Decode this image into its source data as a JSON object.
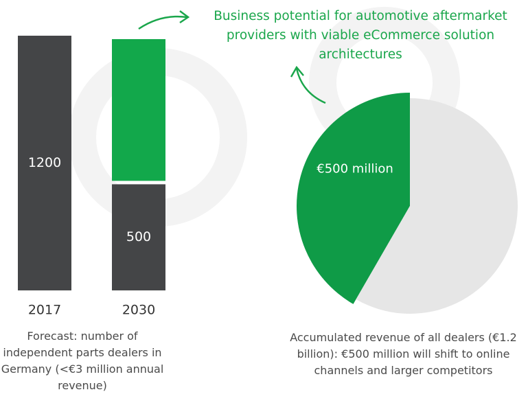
{
  "chart_data": [
    {
      "type": "stacked-bar",
      "categories": [
        "2017",
        "2030"
      ],
      "series": [
        {
          "color": "#444547",
          "values": [
            1200,
            500
          ],
          "data_labels": true
        },
        {
          "color": "#12a84b",
          "values": [
            null,
            700
          ],
          "data_labels": false
        }
      ],
      "ylim": [
        0,
        1200
      ],
      "caption": "Forecast: number of independent parts dealers in Germany (<€3 million annual revenue)"
    },
    {
      "type": "pie",
      "title": "Business potential for automotive aftermarket providers with viable eCommerce solution architectures",
      "values": [
        500,
        700
      ],
      "value_labels": [
        "€500 million",
        null
      ],
      "colors": [
        "#0f9b47",
        "#e6e6e6"
      ],
      "startangle": 90,
      "counterclock": true,
      "caption": "Accumulated revenue of all dealers (€1.2 billion): €500 million will shift to online channels and larger competitors"
    }
  ]
}
